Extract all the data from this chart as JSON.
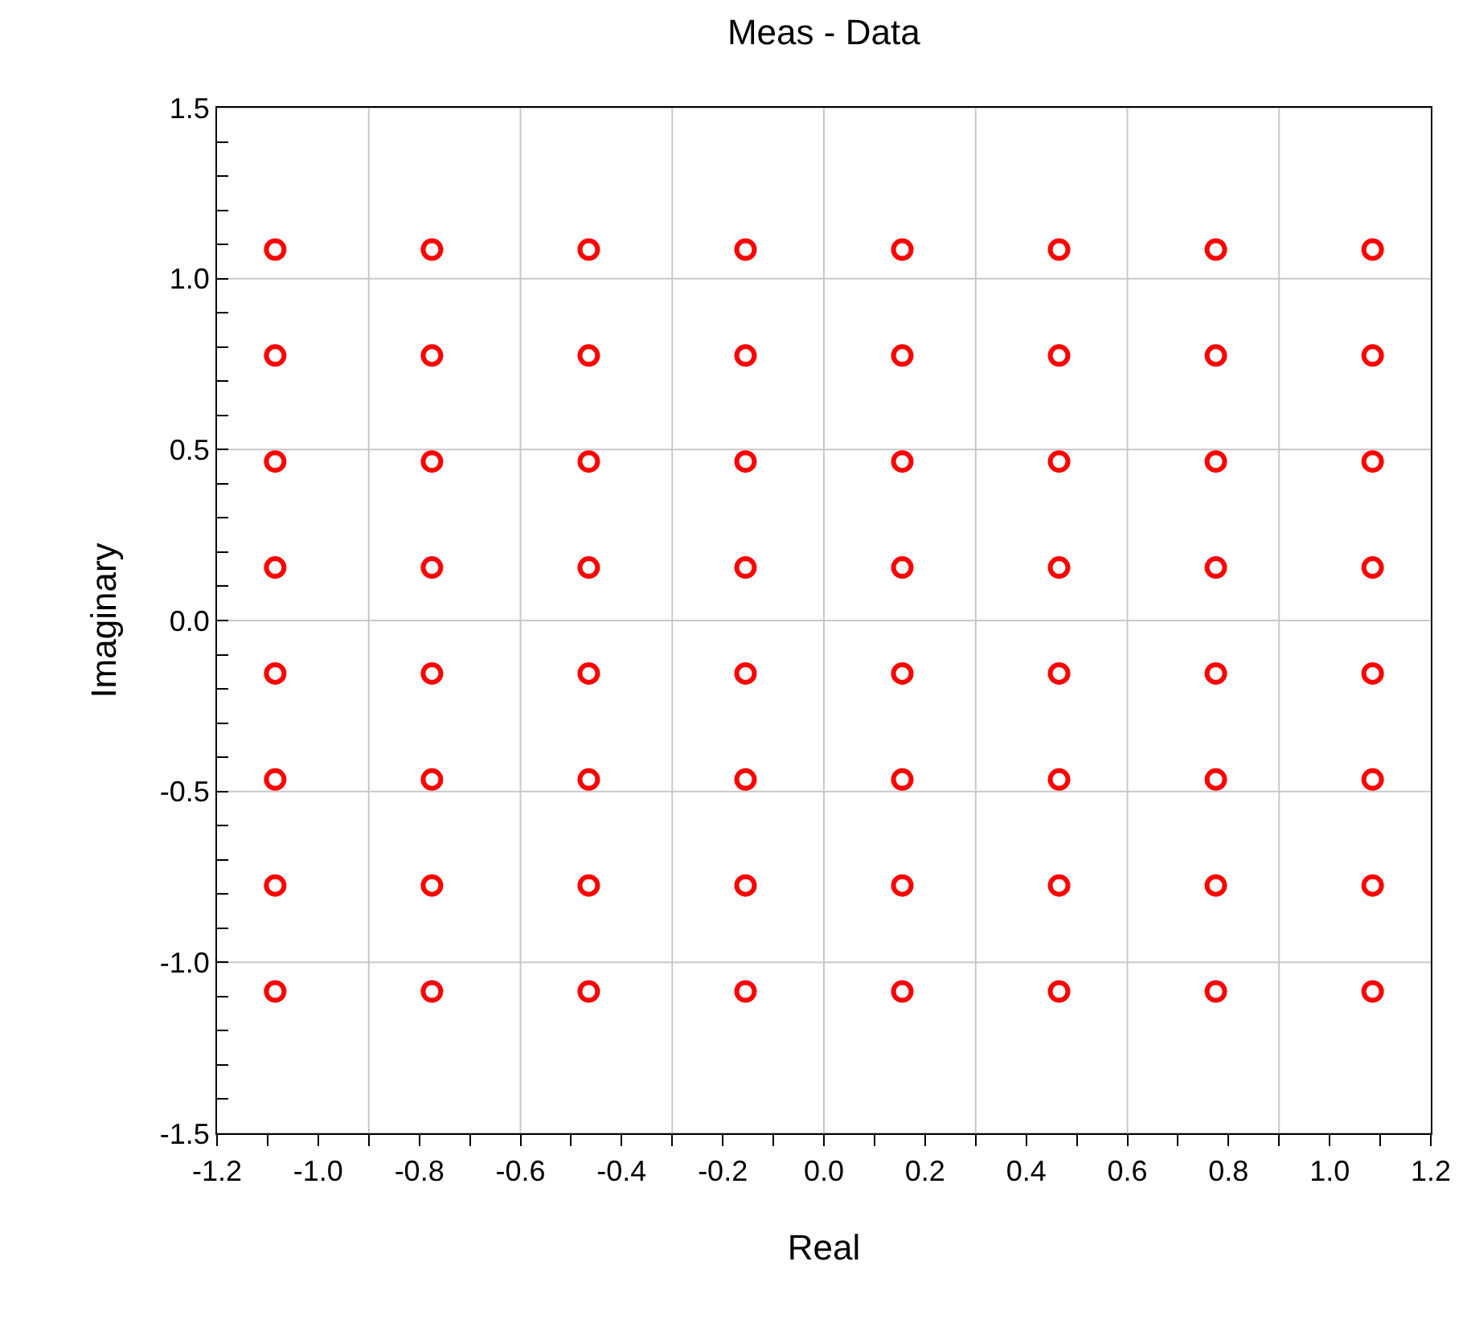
{
  "chart_data": {
    "type": "scatter",
    "title": "Meas - Data",
    "xlabel": "Real",
    "ylabel": "Imaginary",
    "x": [
      -1.085,
      -1.085,
      -1.085,
      -1.085,
      -1.085,
      -1.085,
      -1.085,
      -1.085,
      -0.775,
      -0.775,
      -0.775,
      -0.775,
      -0.775,
      -0.775,
      -0.775,
      -0.775,
      -0.465,
      -0.465,
      -0.465,
      -0.465,
      -0.465,
      -0.465,
      -0.465,
      -0.465,
      -0.155,
      -0.155,
      -0.155,
      -0.155,
      -0.155,
      -0.155,
      -0.155,
      -0.155,
      0.155,
      0.155,
      0.155,
      0.155,
      0.155,
      0.155,
      0.155,
      0.155,
      0.465,
      0.465,
      0.465,
      0.465,
      0.465,
      0.465,
      0.465,
      0.465,
      0.775,
      0.775,
      0.775,
      0.775,
      0.775,
      0.775,
      0.775,
      0.775,
      1.085,
      1.085,
      1.085,
      1.085,
      1.085,
      1.085,
      1.085,
      1.085
    ],
    "series": [
      {
        "color": "#ff0000",
        "values": [
          1.085,
          0.775,
          0.465,
          0.155,
          -0.155,
          -0.465,
          -0.775,
          -1.085,
          1.085,
          0.775,
          0.465,
          0.155,
          -0.155,
          -0.465,
          -0.775,
          -1.085,
          1.085,
          0.775,
          0.465,
          0.155,
          -0.155,
          -0.465,
          -0.775,
          -1.085,
          1.085,
          0.775,
          0.465,
          0.155,
          -0.155,
          -0.465,
          -0.775,
          -1.085,
          1.085,
          0.775,
          0.465,
          0.155,
          -0.155,
          -0.465,
          -0.775,
          -1.085,
          1.085,
          0.775,
          0.465,
          0.155,
          -0.155,
          -0.465,
          -0.775,
          -1.085,
          1.085,
          0.775,
          0.465,
          0.155,
          -0.155,
          -0.465,
          -0.775,
          -1.085,
          1.085,
          0.775,
          0.465,
          0.155,
          -0.155,
          -0.465,
          -0.775,
          -1.085
        ]
      }
    ],
    "xlim": [
      -1.2,
      1.2
    ],
    "xticks": [
      -1.2,
      {
        "value": -1.1,
        "label": null
      },
      {
        "value": -1.0,
        "label": "-1.0"
      },
      {
        "value": -0.9,
        "label": null
      },
      -0.8,
      {
        "value": -0.7,
        "label": null
      },
      -0.6,
      {
        "value": -0.5,
        "label": null
      },
      -0.4,
      {
        "value": -0.3,
        "label": null
      },
      -0.2,
      {
        "value": -0.1,
        "label": null
      },
      {
        "value": 0,
        "label": "0.0"
      },
      {
        "value": 0.1,
        "label": null
      },
      0.2,
      {
        "value": 0.3,
        "label": null
      },
      0.4,
      {
        "value": 0.5,
        "label": null
      },
      0.6,
      {
        "value": 0.7,
        "label": null
      },
      0.8,
      {
        "value": 0.9,
        "label": null
      },
      {
        "value": 1.0,
        "label": "1.0"
      },
      {
        "value": 1.1,
        "label": null
      },
      1.2
    ],
    "ylim": [
      -1.5,
      1.5
    ],
    "yticks": [
      -1.5,
      {
        "value": -1.4,
        "label": null
      },
      {
        "value": -1.3,
        "label": null
      },
      {
        "value": -1.2,
        "label": null
      },
      {
        "value": -1.1,
        "label": null
      },
      {
        "value": -1.0,
        "label": "-1.0"
      },
      {
        "value": -0.9,
        "label": null
      },
      {
        "value": -0.8,
        "label": null
      },
      {
        "value": -0.7,
        "label": null
      },
      {
        "value": -0.6,
        "label": null
      },
      -0.5,
      {
        "value": -0.4,
        "label": null
      },
      {
        "value": -0.3,
        "label": null
      },
      {
        "value": -0.2,
        "label": null
      },
      {
        "value": -0.1,
        "label": null
      },
      {
        "value": 0,
        "label": "0.0"
      },
      {
        "value": 0.1,
        "label": null
      },
      {
        "value": 0.2,
        "label": null
      },
      {
        "value": 0.3,
        "label": null
      },
      {
        "value": 0.4,
        "label": null
      },
      0.5,
      {
        "value": 0.6,
        "label": null
      },
      {
        "value": 0.7,
        "label": null
      },
      {
        "value": 0.8,
        "label": null
      },
      {
        "value": 0.9,
        "label": null
      },
      {
        "value": 1.0,
        "label": "1.0"
      },
      {
        "value": 1.1,
        "label": null
      },
      {
        "value": 1.2,
        "label": null
      },
      {
        "value": 1.3,
        "label": null
      },
      {
        "value": 1.4,
        "label": null
      },
      1.5
    ],
    "ref_lines": [
      {
        "axis": "x",
        "value": -0.9,
        "color": "#c8c8c8"
      },
      {
        "axis": "x",
        "value": -0.6,
        "color": "#c8c8c8"
      },
      {
        "axis": "x",
        "value": -0.3,
        "color": "#c8c8c8"
      },
      {
        "axis": "x",
        "value": 0,
        "color": "#c8c8c8"
      },
      {
        "axis": "x",
        "value": 0.3,
        "color": "#c8c8c8"
      },
      {
        "axis": "x",
        "value": 0.6,
        "color": "#c8c8c8"
      },
      {
        "axis": "x",
        "value": 0.9,
        "color": "#c8c8c8"
      }
    ],
    "grid": "y",
    "marker": "circle"
  }
}
